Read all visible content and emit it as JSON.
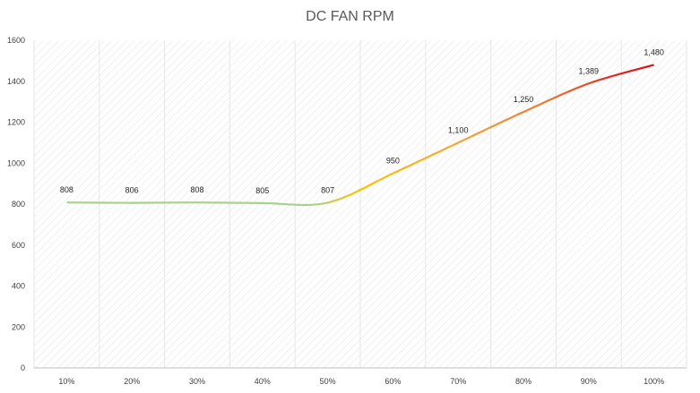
{
  "chart_data": {
    "type": "line",
    "title": "DC FAN RPM",
    "xlabel": "",
    "ylabel": "",
    "categories": [
      "10%",
      "20%",
      "30%",
      "40%",
      "50%",
      "60%",
      "70%",
      "80%",
      "90%",
      "100%"
    ],
    "values": [
      808,
      806,
      808,
      805,
      807,
      950,
      1100,
      1250,
      1389,
      1480
    ],
    "data_labels": [
      "808",
      "806",
      "808",
      "805",
      "807",
      "950",
      "1,100",
      "1,250",
      "1,389",
      "1,480"
    ],
    "y_ticks": [
      "0",
      "200",
      "400",
      "600",
      "800",
      "1000",
      "1200",
      "1400",
      "1600"
    ],
    "ylim": [
      0,
      1600
    ],
    "grid": "vertical, hatched plot area",
    "legend": "none",
    "colors": {
      "low": "#a9d18e",
      "mid": "#ffc000",
      "high": "#ed7d31",
      "top": "#e00000",
      "axis": "#bfbfbf",
      "hatch": "#d9d9d9"
    }
  }
}
